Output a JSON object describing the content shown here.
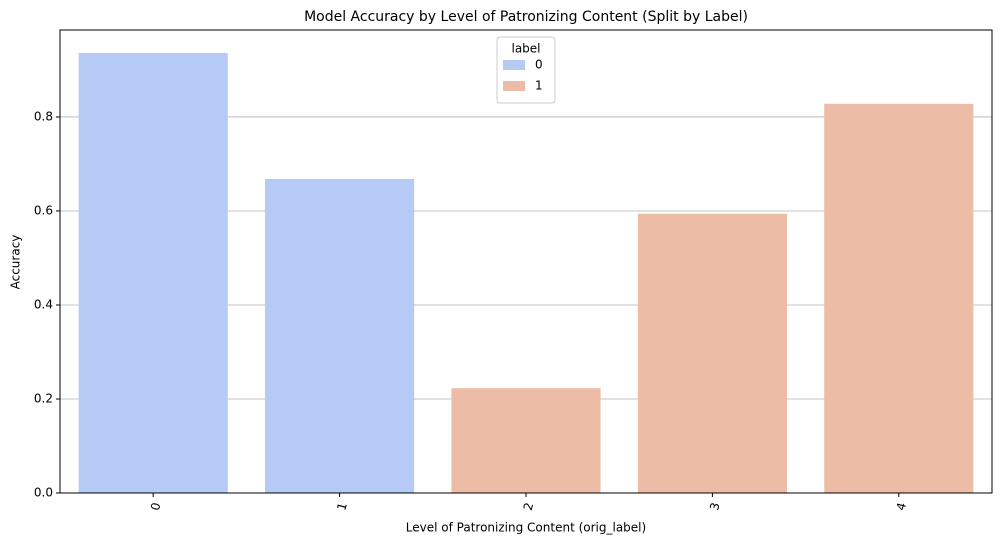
{
  "chart_data": {
    "type": "bar",
    "title": "Model Accuracy by Level of Patronizing Content (Split by Label)",
    "x_label": "Level of Patronizing Content (orig_label)",
    "y_label": "Accuracy",
    "categories": [
      "0",
      "1",
      "2",
      "3",
      "4"
    ],
    "series": [
      {
        "name": "0",
        "color": "#b5cbf5",
        "values": [
          0.936,
          0.668,
          null,
          null,
          null
        ]
      },
      {
        "name": "1",
        "color": "#ecbca6",
        "values": [
          null,
          null,
          0.223,
          0.594,
          0.828
        ]
      }
    ],
    "legend_title": "label",
    "legend": "upper center",
    "ylim": [
      0,
      0.985
    ],
    "yticks": [
      {
        "value": 0,
        "label": "0.0"
      },
      0.2,
      0.4,
      0.6,
      0.8
    ],
    "grid": true
  }
}
